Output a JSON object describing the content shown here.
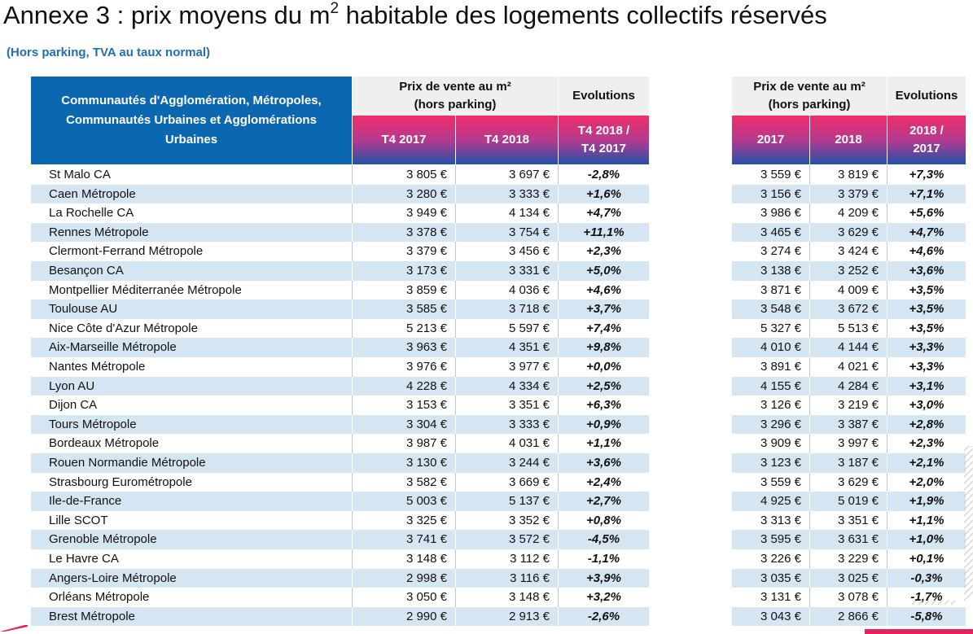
{
  "title": {
    "main": "Annexe 3 : prix moyens du m",
    "sup": "2",
    "rest": " habitable des logements collectifs réservés"
  },
  "subtitle": "(Hors parking, TVA au taux normal)",
  "header": {
    "region": "Communautés d'Agglomération, Métropoles, Communautés Urbaines et Agglomérations Urbaines",
    "price_left_line1": "Prix de vente au m²",
    "price_left_line2": "(hors parking)",
    "evol_left": "Evolutions",
    "price_right_line1": "Prix de vente au m²",
    "price_right_line2": "(hors parking)",
    "evol_right": "Evolutions",
    "col_t4_2017": "T4 2017",
    "col_t4_2018": "T4 2018",
    "col_evol_q_line1": "T4 2018 /",
    "col_evol_q_line2": "T4 2017",
    "col_2017": "2017",
    "col_2018": "2018",
    "col_evol_y_line1": "2018 /",
    "col_evol_y_line2": "2017"
  },
  "rows": [
    {
      "name": "St Malo CA",
      "t4_2017": "3 805 €",
      "t4_2018": "3 697 €",
      "evol_q": "-2,8%",
      "y2017": "3 559 €",
      "y2018": "3 819 €",
      "evol_y": "+7,3%"
    },
    {
      "name": "Caen Métropole",
      "t4_2017": "3 280 €",
      "t4_2018": "3 333 €",
      "evol_q": "+1,6%",
      "y2017": "3 156 €",
      "y2018": "3 379 €",
      "evol_y": "+7,1%"
    },
    {
      "name": "La Rochelle CA",
      "t4_2017": "3 949 €",
      "t4_2018": "4 134 €",
      "evol_q": "+4,7%",
      "y2017": "3 986 €",
      "y2018": "4 209 €",
      "evol_y": "+5,6%"
    },
    {
      "name": "Rennes Métropole",
      "t4_2017": "3 378 €",
      "t4_2018": "3 754 €",
      "evol_q": "+11,1%",
      "y2017": "3 465 €",
      "y2018": "3 629 €",
      "evol_y": "+4,7%"
    },
    {
      "name": "Clermont-Ferrand Métropole",
      "t4_2017": "3 379 €",
      "t4_2018": "3 456 €",
      "evol_q": "+2,3%",
      "y2017": "3 274 €",
      "y2018": "3 424 €",
      "evol_y": "+4,6%"
    },
    {
      "name": "Besançon CA",
      "t4_2017": "3 173 €",
      "t4_2018": "3 331 €",
      "evol_q": "+5,0%",
      "y2017": "3 138 €",
      "y2018": "3 252 €",
      "evol_y": "+3,6%"
    },
    {
      "name": "Montpellier Méditerranée Métropole",
      "t4_2017": "3 859 €",
      "t4_2018": "4 036 €",
      "evol_q": "+4,6%",
      "y2017": "3 871 €",
      "y2018": "4 009 €",
      "evol_y": "+3,5%"
    },
    {
      "name": "Toulouse AU",
      "t4_2017": "3 585 €",
      "t4_2018": "3 718 €",
      "evol_q": "+3,7%",
      "y2017": "3 548 €",
      "y2018": "3 672 €",
      "evol_y": "+3,5%"
    },
    {
      "name": "Nice Côte d'Azur Métropole",
      "t4_2017": "5 213 €",
      "t4_2018": "5 597 €",
      "evol_q": "+7,4%",
      "y2017": "5 327 €",
      "y2018": "5 513 €",
      "evol_y": "+3,5%"
    },
    {
      "name": "Aix-Marseille Métropole",
      "t4_2017": "3 963 €",
      "t4_2018": "4 351 €",
      "evol_q": "+9,8%",
      "y2017": "4 010 €",
      "y2018": "4 144 €",
      "evol_y": "+3,3%"
    },
    {
      "name": "Nantes Métropole",
      "t4_2017": "3 976 €",
      "t4_2018": "3 977 €",
      "evol_q": "+0,0%",
      "y2017": "3 891 €",
      "y2018": "4 021 €",
      "evol_y": "+3,3%"
    },
    {
      "name": "Lyon AU",
      "t4_2017": "4 228 €",
      "t4_2018": "4 334 €",
      "evol_q": "+2,5%",
      "y2017": "4 155 €",
      "y2018": "4 284 €",
      "evol_y": "+3,1%"
    },
    {
      "name": "Dijon CA",
      "t4_2017": "3 153 €",
      "t4_2018": "3 351 €",
      "evol_q": "+6,3%",
      "y2017": "3 126 €",
      "y2018": "3 219 €",
      "evol_y": "+3,0%"
    },
    {
      "name": "Tours Métropole",
      "t4_2017": "3 304 €",
      "t4_2018": "3 333 €",
      "evol_q": "+0,9%",
      "y2017": "3 296 €",
      "y2018": "3 387 €",
      "evol_y": "+2,8%"
    },
    {
      "name": "Bordeaux Métropole",
      "t4_2017": "3 987 €",
      "t4_2018": "4 031 €",
      "evol_q": "+1,1%",
      "y2017": "3 909 €",
      "y2018": "3 997 €",
      "evol_y": "+2,3%"
    },
    {
      "name": "Rouen Normandie Métropole",
      "t4_2017": "3 130 €",
      "t4_2018": "3 244 €",
      "evol_q": "+3,6%",
      "y2017": "3 123 €",
      "y2018": "3 187 €",
      "evol_y": "+2,1%"
    },
    {
      "name": "Strasbourg Eurométropole",
      "t4_2017": "3 582 €",
      "t4_2018": "3 669 €",
      "evol_q": "+2,4%",
      "y2017": "3 559 €",
      "y2018": "3 629 €",
      "evol_y": "+2,0%"
    },
    {
      "name": "Ile-de-France",
      "t4_2017": "5 003 €",
      "t4_2018": "5 137 €",
      "evol_q": "+2,7%",
      "y2017": "4 925 €",
      "y2018": "5 019 €",
      "evol_y": "+1,9%"
    },
    {
      "name": "Lille SCOT",
      "t4_2017": "3 325 €",
      "t4_2018": "3 352 €",
      "evol_q": "+0,8%",
      "y2017": "3 313 €",
      "y2018": "3 351 €",
      "evol_y": "+1,1%"
    },
    {
      "name": "Grenoble Métropole",
      "t4_2017": "3 741 €",
      "t4_2018": "3 572 €",
      "evol_q": "-4,5%",
      "y2017": "3 595 €",
      "y2018": "3 631 €",
      "evol_y": "+1,0%"
    },
    {
      "name": "Le Havre CA",
      "t4_2017": "3 148 €",
      "t4_2018": "3 112 €",
      "evol_q": "-1,1%",
      "y2017": "3 226 €",
      "y2018": "3 229 €",
      "evol_y": "+0,1%"
    },
    {
      "name": "Angers-Loire Métropole",
      "t4_2017": "2 998 €",
      "t4_2018": "3 116 €",
      "evol_q": "+3,9%",
      "y2017": "3 035 €",
      "y2018": "3 025 €",
      "evol_y": "-0,3%"
    },
    {
      "name": "Orléans Métropole",
      "t4_2017": "3 050 €",
      "t4_2018": "3 148 €",
      "evol_q": "+3,2%",
      "y2017": "3 131 €",
      "y2018": "3 078 €",
      "evol_y": "-1,7%"
    },
    {
      "name": "Brest Métropole",
      "t4_2017": "2 990 €",
      "t4_2018": "2 913 €",
      "evol_q": "-2,6%",
      "y2017": "3 043 €",
      "y2018": "2 866 €",
      "evol_y": "-5,8%"
    }
  ],
  "colors": {
    "header_blue": "#0b68b0",
    "header_gradient_top": "#ee2d6a",
    "header_gradient_bottom": "#2450a8",
    "row_shade": "#d5e6f2",
    "subtitle": "#1f6fb5"
  }
}
